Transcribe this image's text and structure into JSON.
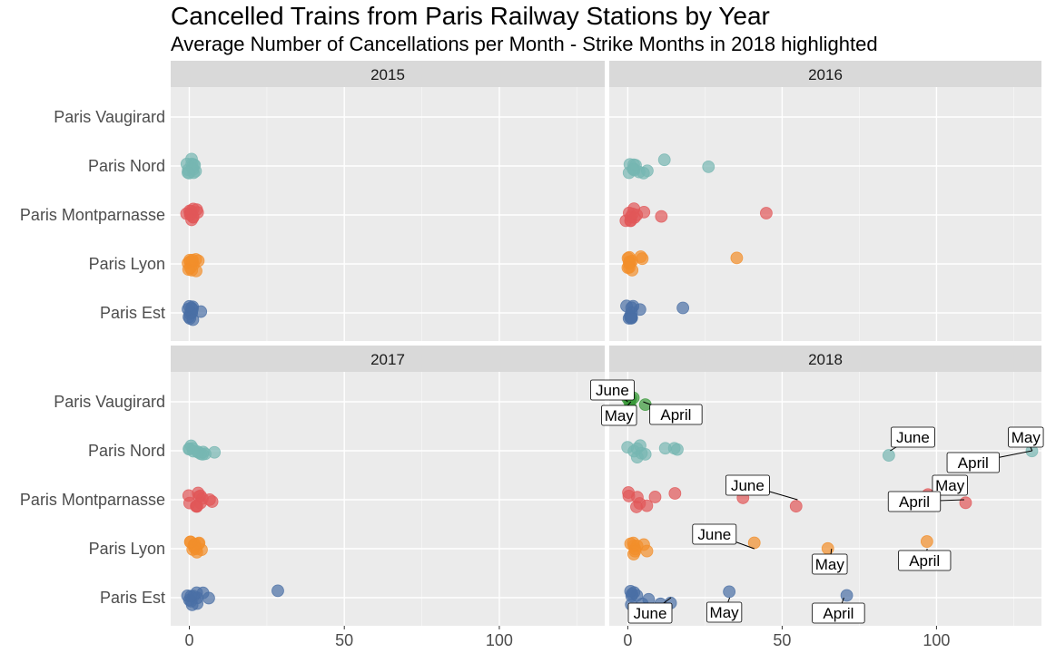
{
  "title": "Cancelled Trains from Paris Railway Stations by Year",
  "subtitle": "Average Number of Cancellations per Month - Strike Months in 2018 highlighted",
  "chart_data": {
    "type": "scatter",
    "facets": [
      "2015",
      "2016",
      "2017",
      "2018"
    ],
    "categories": [
      "Paris Est",
      "Paris Lyon",
      "Paris Montparnasse",
      "Paris Nord",
      "Paris Vaugirard"
    ],
    "x_ticks": [
      0,
      50,
      100
    ],
    "xlim": [
      -6,
      134
    ],
    "colors": {
      "Paris Est": "#4a6fa5",
      "Paris Lyon": "#f28e2b",
      "Paris Montparnasse": "#e15759",
      "Paris Nord": "#76b7b2",
      "Paris Vaugirard": "#3a9a3a"
    },
    "points": {
      "2015": {
        "Paris Nord": [
          0.2,
          0.5,
          1.0,
          0.3,
          0.6,
          1.2,
          2.0,
          0.8,
          0.1,
          0.4,
          1.5,
          0.9
        ],
        "Paris Montparnasse": [
          0.3,
          0.6,
          1.0,
          1.4,
          0.2,
          0.8,
          1.6,
          0.5,
          0.9,
          0.4,
          1.2,
          1.8
        ],
        "Paris Lyon": [
          0.5,
          1.0,
          1.5,
          2.5,
          3.0,
          0.3,
          0.8,
          1.2,
          0.6,
          1.8,
          0.4,
          1.1
        ],
        "Paris Est": [
          0.2,
          0.5,
          0.9,
          1.2,
          3.5,
          0.4,
          0.7,
          1.0,
          0.3,
          0.6,
          0.8,
          0.1
        ]
      },
      "2016": {
        "Paris Nord": [
          0.5,
          1.0,
          2.0,
          3.0,
          5.0,
          6.0,
          12.0,
          25.0,
          0.3,
          1.5,
          2.5,
          0.8
        ],
        "Paris Montparnasse": [
          0.5,
          1.0,
          2.0,
          3.0,
          6.0,
          12.0,
          45.0,
          0.8,
          1.5,
          0.3,
          2.5,
          1.2
        ],
        "Paris Lyon": [
          0.5,
          1.0,
          1.5,
          2.0,
          4.0,
          5.0,
          35.0,
          0.3,
          0.8,
          1.2,
          0.6,
          1.8
        ],
        "Paris Est": [
          0.5,
          1.0,
          2.0,
          3.0,
          19.0,
          0.3,
          0.8,
          1.5,
          2.5,
          0.6,
          1.2,
          0.4
        ]
      },
      "2017": {
        "Paris Nord": [
          0.5,
          1.0,
          2.0,
          3.0,
          5.0,
          6.0,
          7.0,
          1.5,
          2.5,
          0.8,
          3.5,
          1.2
        ],
        "Paris Montparnasse": [
          1.0,
          2.0,
          3.0,
          4.0,
          6.0,
          8.0,
          1.5,
          2.5,
          3.5,
          0.8,
          4.5,
          2.2
        ],
        "Paris Lyon": [
          1.0,
          2.0,
          3.0,
          4.0,
          1.5,
          2.5,
          0.8,
          3.5,
          1.2,
          2.2,
          1.8,
          0.6
        ],
        "Paris Est": [
          0.5,
          1.0,
          2.0,
          4.0,
          7.0,
          29.0,
          1.5,
          2.5,
          0.8,
          1.2,
          3.0,
          0.3
        ]
      },
      "2018": {
        "Paris Vaugirard": [
          0.0,
          0.3,
          0.5,
          1.0,
          1.5,
          2.0,
          5.0
        ],
        "Paris Nord": [
          1.0,
          2.0,
          3.0,
          4.0,
          5.0,
          13.0,
          16.0,
          17.0,
          85.0,
          131.0,
          3.5,
          6.0
        ],
        "Paris Montparnasse": [
          1.0,
          2.0,
          3.0,
          6.0,
          10.0,
          15.0,
          37.0,
          55.0,
          97.0,
          109.0,
          1.5,
          4.0
        ],
        "Paris Lyon": [
          1.0,
          2.0,
          3.0,
          5.0,
          6.0,
          41.0,
          66.0,
          97.0,
          1.5,
          4.0,
          2.5,
          0.8
        ],
        "Paris Est": [
          1.0,
          3.0,
          5.0,
          10.0,
          14.0,
          33.0,
          70.0,
          2.0,
          4.0,
          1.5,
          6.0,
          0.8
        ]
      }
    },
    "annotations": [
      {
        "station": "Paris Vaugirard",
        "label": "June",
        "x": 0.0
      },
      {
        "station": "Paris Vaugirard",
        "label": "May",
        "x": 1.0
      },
      {
        "station": "Paris Vaugirard",
        "label": "April",
        "x": 5.0
      },
      {
        "station": "Paris Nord",
        "label": "June",
        "x": 85.0
      },
      {
        "station": "Paris Nord",
        "label": "May",
        "x": 131.0
      },
      {
        "station": "Paris Nord",
        "label": "April",
        "x": 131.0
      },
      {
        "station": "Paris Montparnasse",
        "label": "June",
        "x": 55.0
      },
      {
        "station": "Paris Montparnasse",
        "label": "May",
        "x": 97.0
      },
      {
        "station": "Paris Montparnasse",
        "label": "April",
        "x": 109.0
      },
      {
        "station": "Paris Lyon",
        "label": "June",
        "x": 41.0
      },
      {
        "station": "Paris Lyon",
        "label": "May",
        "x": 66.0
      },
      {
        "station": "Paris Lyon",
        "label": "April",
        "x": 97.0
      },
      {
        "station": "Paris Est",
        "label": "May",
        "x": 33.0
      },
      {
        "station": "Paris Est",
        "label": "June",
        "x": 14.0
      },
      {
        "station": "Paris Est",
        "label": "April",
        "x": 70.0
      }
    ]
  }
}
